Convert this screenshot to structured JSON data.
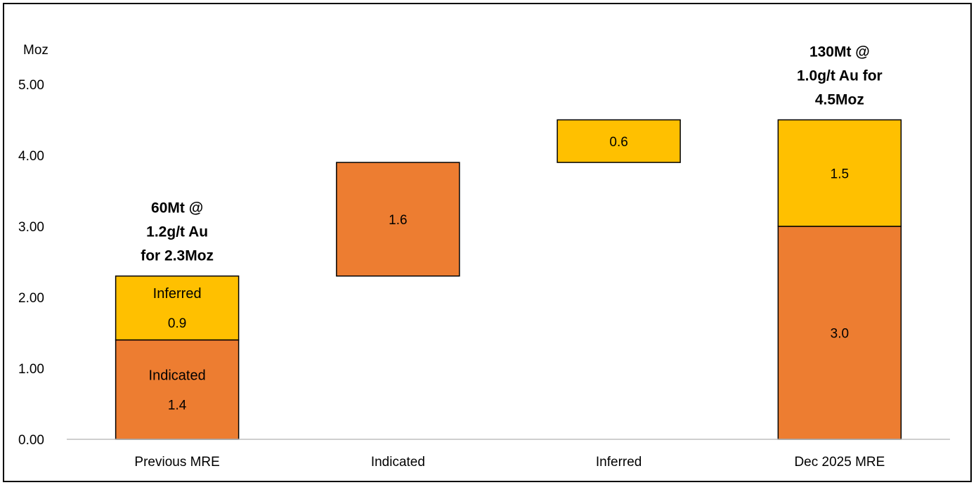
{
  "chart_data": {
    "type": "bar",
    "subtype": "waterfall-stacked",
    "y_unit_label": "Moz",
    "ylim": [
      0,
      5
    ],
    "yticks": [
      "0.00",
      "1.00",
      "2.00",
      "3.00",
      "4.00",
      "5.00"
    ],
    "grid": false,
    "categories": [
      "Previous MRE",
      "Indicated",
      "Inferred",
      "Dec 2025 MRE"
    ],
    "segments": [
      {
        "category": "Previous MRE",
        "base": 0.0,
        "value": 1.4,
        "color": "#ED7D31",
        "name": "Indicated",
        "label": "1.4"
      },
      {
        "category": "Previous MRE",
        "base": 1.4,
        "value": 0.9,
        "color": "#FFC000",
        "name": "Inferred",
        "label": "0.9"
      },
      {
        "category": "Indicated",
        "base": 2.3,
        "value": 1.6,
        "color": "#ED7D31",
        "label": "1.6"
      },
      {
        "category": "Inferred",
        "base": 3.9,
        "value": 0.6,
        "color": "#FFC000",
        "label": "0.6"
      },
      {
        "category": "Dec 2025 MRE",
        "base": 0.0,
        "value": 3.0,
        "color": "#ED7D31",
        "label": "3.0"
      },
      {
        "category": "Dec 2025 MRE",
        "base": 3.0,
        "value": 1.5,
        "color": "#FFC000",
        "label": "1.5"
      }
    ],
    "annotations": [
      {
        "category": "Previous MRE",
        "lines": [
          "60Mt @",
          "1.2g/t Au",
          "for 2.3Moz"
        ]
      },
      {
        "category": "Dec 2025 MRE",
        "lines": [
          "130Mt @",
          "1.0g/t Au for",
          "4.5Moz"
        ]
      }
    ]
  }
}
